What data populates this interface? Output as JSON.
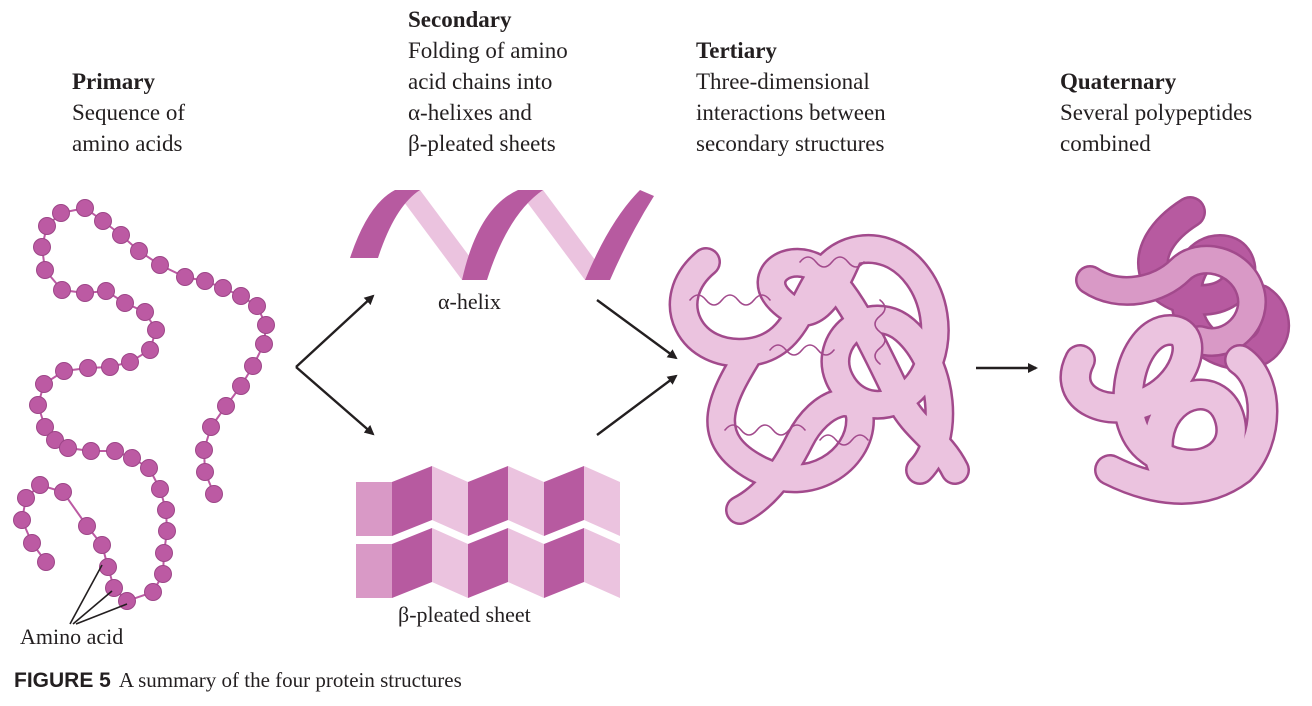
{
  "stages": {
    "primary": {
      "title": "Primary",
      "description": "Sequence of\namino acids"
    },
    "secondary": {
      "title": "Secondary",
      "description": "Folding of amino\nacid chains into\nα-helixes and\nβ-pleated sheets"
    },
    "tertiary": {
      "title": "Tertiary",
      "description": "Three-dimensional\ninteractions between\nsecondary structures"
    },
    "quaternary": {
      "title": "Quaternary",
      "description": "Several polypeptides\ncombined"
    }
  },
  "labels": {
    "alpha_helix": "α-helix",
    "beta_sheet": "β-pleated sheet",
    "amino_acid": "Amino acid"
  },
  "caption": {
    "number": "FIGURE 5",
    "text": "A summary of the four protein structures"
  },
  "colors": {
    "bead": "#bc5aa3",
    "dark_magenta": "#b75aa0",
    "medium_pink": "#d999c6",
    "light_pink": "#ebc3df",
    "outline": "#a24a8c",
    "arrow": "#231f20"
  }
}
